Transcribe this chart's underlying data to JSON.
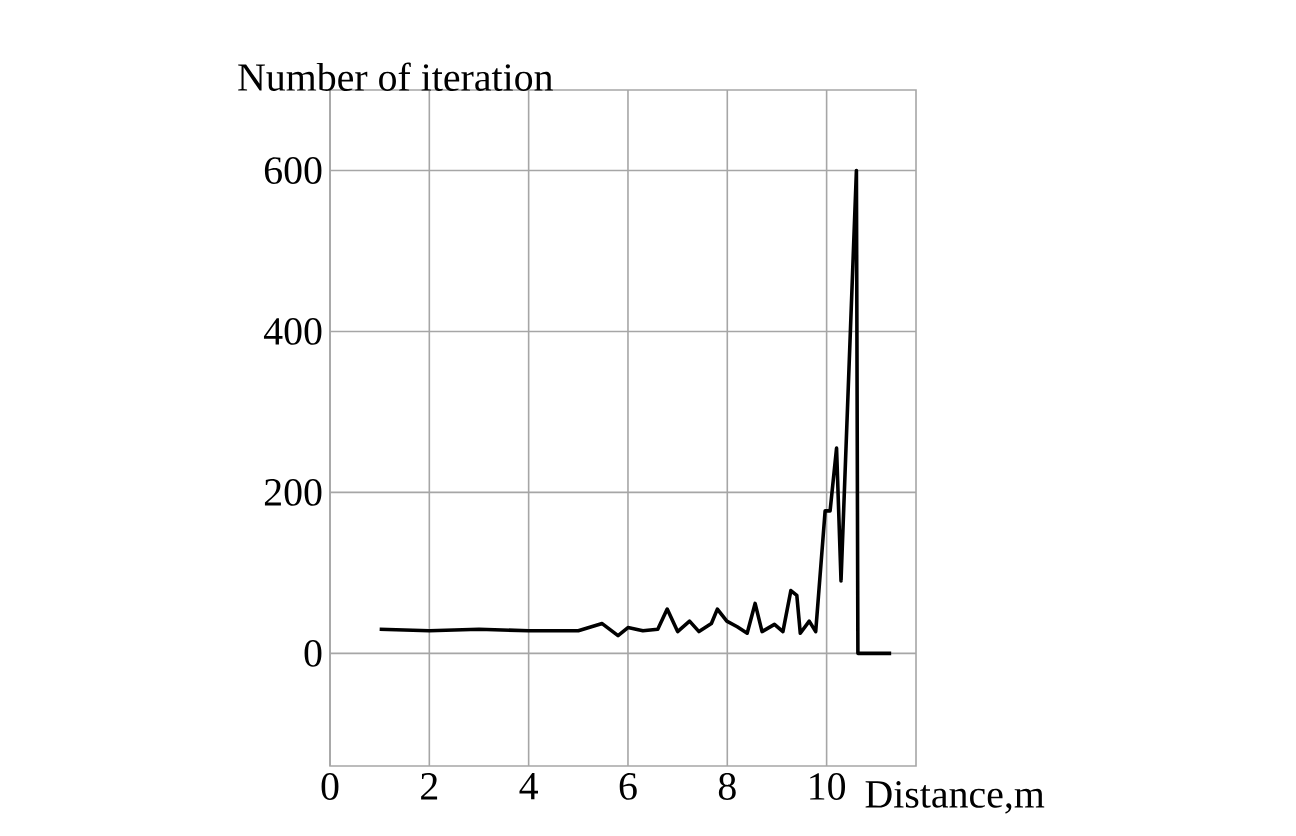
{
  "chart_data": {
    "type": "line",
    "xlabel": "Distance,m",
    "ylabel": "Number of iteration",
    "x": [
      1.0,
      2.0,
      3.0,
      4.0,
      5.0,
      5.48,
      5.8,
      6.0,
      6.3,
      6.6,
      6.79,
      7.0,
      7.24,
      7.43,
      7.68,
      7.8,
      7.99,
      8.2,
      8.4,
      8.56,
      8.7,
      8.95,
      9.12,
      9.28,
      9.4,
      9.47,
      9.65,
      9.78,
      9.97,
      10.07,
      10.2,
      10.29,
      10.6,
      10.63,
      11.3
    ],
    "values": [
      30,
      28,
      30,
      28,
      28,
      37,
      22,
      32,
      28,
      30,
      55,
      27,
      40,
      27,
      37,
      55,
      40,
      33,
      25,
      62,
      27,
      36,
      27,
      78,
      72,
      25,
      40,
      27,
      177,
      177,
      255,
      90,
      600,
      0,
      0
    ],
    "color": "#000000",
    "xlim": [
      0,
      11.8
    ],
    "xticks": [
      0,
      2,
      4,
      6,
      8,
      10
    ],
    "ylim": [
      -140,
      700
    ],
    "yticks": [
      0,
      200,
      400,
      600
    ],
    "grid": true,
    "marker": "none",
    "line_style": "solid"
  }
}
